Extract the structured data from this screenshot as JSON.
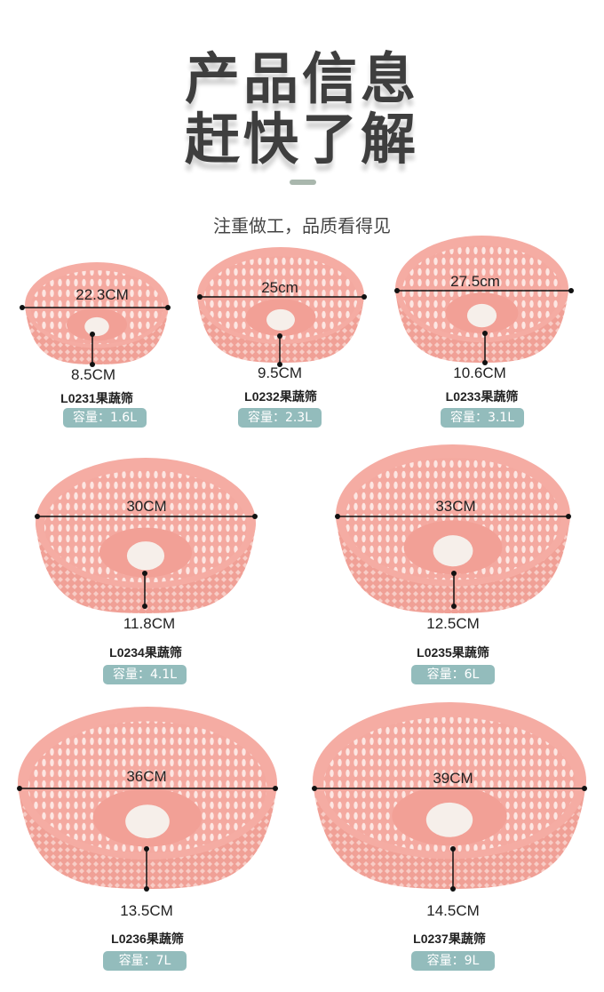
{
  "header": {
    "title_line1": "产品信息",
    "title_line2": "赶快了解",
    "subtitle": "注重做工，品质看得见"
  },
  "colors": {
    "basket": "#f4a9a0",
    "badge": "#93bcbc",
    "title": "#3e3e3e"
  },
  "products": [
    {
      "diameter": "22.3CM",
      "height": "8.5CM",
      "name": "L0231果蔬筛",
      "capacity": "容量：1.6L"
    },
    {
      "diameter": "25cm",
      "height": "9.5CM",
      "name": "L0232果蔬筛",
      "capacity": "容量：2.3L"
    },
    {
      "diameter": "27.5cm",
      "height": "10.6CM",
      "name": "L0233果蔬筛",
      "capacity": "容量：3.1L"
    },
    {
      "diameter": "30CM",
      "height": "11.8CM",
      "name": "L0234果蔬筛",
      "capacity": "容量：4.1L"
    },
    {
      "diameter": "33CM",
      "height": "12.5CM",
      "name": "L0235果蔬筛",
      "capacity": "容量：6L"
    },
    {
      "diameter": "36CM",
      "height": "13.5CM",
      "name": "L0236果蔬筛",
      "capacity": "容量：7L"
    },
    {
      "diameter": "39CM",
      "height": "14.5CM",
      "name": "L0237果蔬筛",
      "capacity": "容量：9L"
    }
  ]
}
